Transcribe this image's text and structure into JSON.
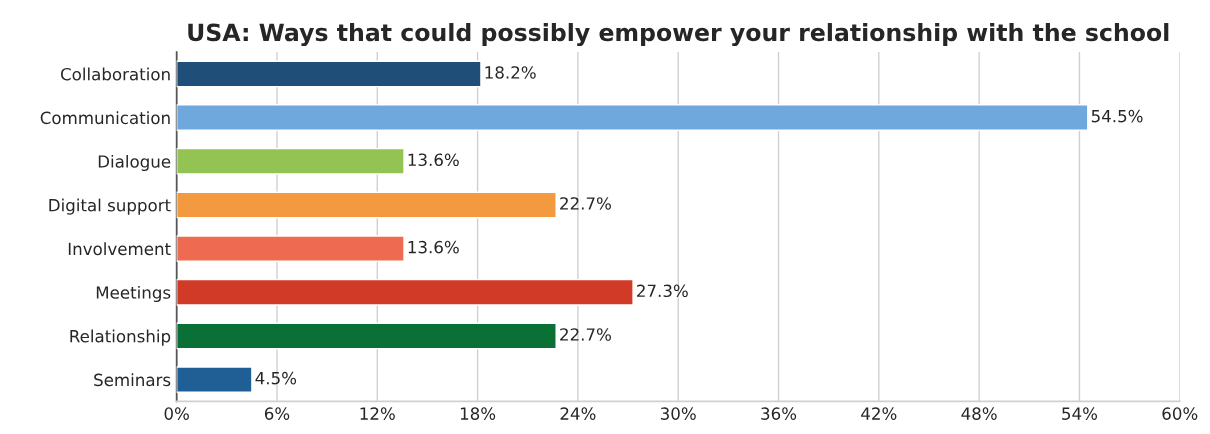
{
  "chart_data": {
    "type": "bar",
    "orientation": "horizontal",
    "title": "USA: Ways that could possibly empower your relationship with the school",
    "categories": [
      "Collaboration",
      "Communication",
      "Dialogue",
      "Digital support",
      "Involvement",
      "Meetings",
      "Relationship",
      "Seminars"
    ],
    "values": [
      18.2,
      54.5,
      13.6,
      22.7,
      13.6,
      27.3,
      22.7,
      4.5
    ],
    "colors": [
      "#1f4e79",
      "#6fa8dc",
      "#92c353",
      "#f39a40",
      "#ee6a50",
      "#d03a27",
      "#0a7035",
      "#1f5f96"
    ],
    "value_labels": [
      "18.2%",
      "54.5%",
      "13.6%",
      "22.7%",
      "13.6%",
      "27.3%",
      "22.7%",
      "4.5%"
    ],
    "xlim": [
      0,
      60
    ],
    "xticks": [
      {
        "value": 0,
        "label": "0%"
      },
      {
        "value": 6,
        "label": "6%"
      },
      {
        "value": 12,
        "label": "12%"
      },
      {
        "value": 18,
        "label": "18%"
      },
      {
        "value": 24,
        "label": "24%"
      },
      {
        "value": 30,
        "label": "30%"
      },
      {
        "value": 36,
        "label": "36%"
      },
      {
        "value": 42,
        "label": "42%"
      },
      {
        "value": 48,
        "label": "48%"
      },
      {
        "value": 54,
        "label": "54%"
      },
      {
        "value": 60,
        "label": "60%"
      }
    ],
    "grid": "x",
    "legend": false
  }
}
